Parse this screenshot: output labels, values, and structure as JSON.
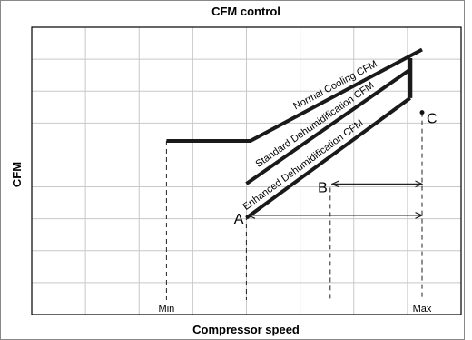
{
  "chart_data": {
    "type": "line",
    "title": "CFM control",
    "xlabel": "Compressor speed",
    "ylabel": "CFM",
    "xlim": [
      0,
      100
    ],
    "ylim": [
      0,
      100
    ],
    "grid": true,
    "x_ticks": [
      {
        "label": "Min",
        "value": 36
      },
      {
        "label": "Max",
        "value": 100
      }
    ],
    "series": [
      {
        "name": "Normal Cooling CFM",
        "points": [
          [
            36,
            57
          ],
          [
            57,
            57
          ],
          [
            100,
            89
          ]
        ]
      },
      {
        "name": "Standard Dehumidification CFM",
        "points": [
          [
            56,
            42
          ],
          [
            97,
            82
          ]
        ]
      },
      {
        "name": "Enhanced Dehumidification CFM",
        "points": [
          [
            56,
            30
          ],
          [
            97,
            72
          ]
        ]
      }
    ],
    "connector": {
      "points": [
        [
          97,
          72
        ],
        [
          97,
          86
        ]
      ]
    },
    "markers": [
      {
        "label": "A",
        "point": [
          56,
          29
        ],
        "arrow_to": 100
      },
      {
        "label": "B",
        "point": [
          77,
          40
        ],
        "arrow_to": 100
      },
      {
        "label": "C",
        "point": [
          100,
          67
        ]
      }
    ],
    "dashed_guides": [
      36,
      56,
      77,
      100
    ]
  }
}
